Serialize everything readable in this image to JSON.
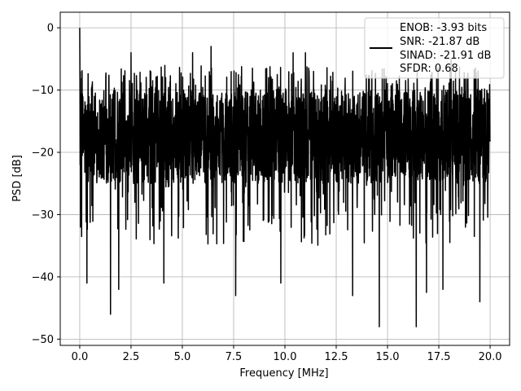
{
  "chart_data": {
    "type": "line",
    "title": "",
    "xlabel": "Frequency [MHz]",
    "ylabel": "PSD [dB]",
    "xlim": [
      -0.95,
      20.95
    ],
    "ylim": [
      -51,
      2.5
    ],
    "xticks": [
      0.0,
      2.5,
      5.0,
      7.5,
      10.0,
      12.5,
      15.0,
      17.5,
      20.0
    ],
    "xtick_labels": [
      "0.0",
      "2.5",
      "5.0",
      "7.5",
      "10.0",
      "12.5",
      "15.0",
      "17.5",
      "20.0"
    ],
    "yticks": [
      0,
      -10,
      -20,
      -30,
      -40,
      -50
    ],
    "ytick_labels": [
      "0",
      "−10",
      "−20",
      "−30",
      "−40",
      "−50"
    ],
    "grid": true,
    "legend_position": "top-right",
    "colors": {
      "line": "#000000",
      "grid": "#b0b0b0"
    },
    "series": [
      {
        "line_color": "#000000",
        "legend_lines": [
          "ENOB: -3.93 bits",
          "SNR: -21.87 dB",
          "SINAD: -21.91 dB",
          "SFDR: 0.68"
        ],
        "summary": {
          "x_range": [
            0.0,
            20.0
          ],
          "peak": {
            "x": 0.0,
            "y": 0.0
          },
          "typical_band": [
            -25,
            -10
          ],
          "notable_dips": [
            {
              "x": 0.35,
              "y": -41
            },
            {
              "x": 1.5,
              "y": -46
            },
            {
              "x": 1.9,
              "y": -42
            },
            {
              "x": 4.1,
              "y": -41
            },
            {
              "x": 7.6,
              "y": -43
            },
            {
              "x": 9.8,
              "y": -41
            },
            {
              "x": 13.3,
              "y": -43
            },
            {
              "x": 14.6,
              "y": -48
            },
            {
              "x": 16.4,
              "y": -48
            },
            {
              "x": 16.9,
              "y": -42.5
            },
            {
              "x": 17.7,
              "y": -42
            },
            {
              "x": 19.5,
              "y": -44
            }
          ],
          "notable_peaks": [
            {
              "x": 2.5,
              "y": -4
            },
            {
              "x": 5.5,
              "y": -4
            },
            {
              "x": 6.4,
              "y": -3
            },
            {
              "x": 10.4,
              "y": -4
            },
            {
              "x": 11.0,
              "y": -4
            },
            {
              "x": 18.1,
              "y": -5
            }
          ]
        }
      }
    ]
  }
}
